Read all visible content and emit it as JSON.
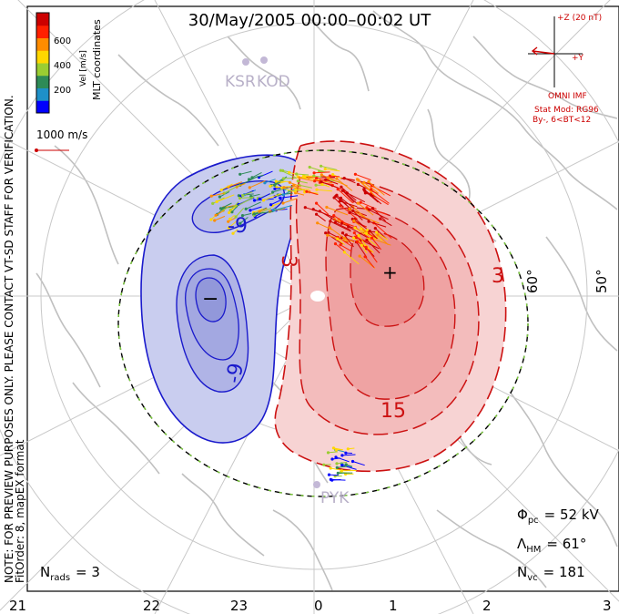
{
  "title": "30/May/2005 00:00–00:02 UT",
  "side_note_line1": "NOTE: FOR PREVIEW PURPOSES ONLY. PLEASE CONTACT VT-SD STAFF FOR VERIFICATION.",
  "side_note_line2": "FitOrder: 8, mapEX format",
  "coords_label": "MLT coordinates",
  "colorbar": {
    "unit_label": "Vel [m/s]",
    "ticks": [
      "200",
      "400",
      "600"
    ],
    "colors": [
      "#0000ff",
      "#1e90c8",
      "#2e8b57",
      "#9acd32",
      "#ffd700",
      "#ff8c00",
      "#ff2000",
      "#cc0000"
    ],
    "range": [
      0,
      800
    ]
  },
  "scale_vector_label": "1000 m/s",
  "stations": {
    "north": "KSR",
    "north_b": "KOD",
    "south": "PYK"
  },
  "imf": {
    "axis_z": "+Z (20 nT)",
    "axis_y": "+Y",
    "source": "OMNI IMF",
    "model": "Stat Mod: RG96",
    "condition": "By-, 6<BT<12"
  },
  "contour_labels": {
    "neg_a": "-9",
    "neg_b": "-9",
    "neg_min": "−",
    "pos_a": "3",
    "pos_b": "3",
    "pos_c": "15",
    "pos_max": "+"
  },
  "latitude_labels": [
    "60°",
    "50°"
  ],
  "mlt_hours": [
    "21",
    "22",
    "23",
    "0",
    "1",
    "2",
    "3"
  ],
  "stats": {
    "phi_sym": "Φ",
    "phi_sub": "pc",
    "phi_val": "= 52 kV",
    "lambda_sym": "Λ",
    "lambda_sub": "HM",
    "lambda_val": "= 61°",
    "nvc_sym": "N",
    "nvc_sub": "vc",
    "nvc_val": "= 181",
    "nrads_sym": "N",
    "nrads_sub": "rads",
    "nrads_val": "= 3"
  },
  "colors": {
    "negative_fill": "#c9cdef",
    "negative_line": "#1a1acc",
    "positive_fill": "#f4b8b8",
    "positive_line": "#cc1111",
    "coastline": "#c0c0c0",
    "grid": "#c8c8c8"
  }
}
